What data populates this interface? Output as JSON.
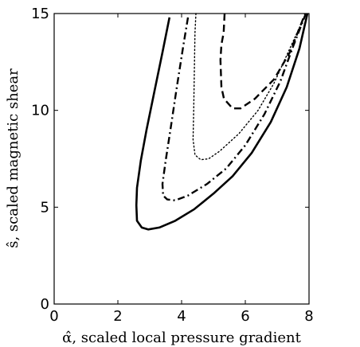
{
  "chart_data": {
    "type": "line",
    "title": "",
    "xlabel": "α̂, scaled local pressure gradient",
    "ylabel": "ŝ, scaled magnetic shear",
    "xlim": [
      0,
      8
    ],
    "ylim": [
      0,
      15
    ],
    "xticks": [
      0,
      2,
      4,
      6,
      8
    ],
    "yticks": [
      0,
      5,
      10,
      15
    ],
    "grid": false,
    "legend": "none",
    "series": [
      {
        "style": "solid",
        "color": "#000000",
        "points": [
          [
            3.62,
            14.8
          ],
          [
            3.4,
            13.0
          ],
          [
            3.15,
            11.0
          ],
          [
            2.9,
            9.0
          ],
          [
            2.72,
            7.4
          ],
          [
            2.6,
            6.0
          ],
          [
            2.58,
            5.1
          ],
          [
            2.6,
            4.3
          ],
          [
            2.75,
            3.95
          ],
          [
            2.95,
            3.85
          ],
          [
            3.3,
            3.95
          ],
          [
            3.8,
            4.3
          ],
          [
            4.4,
            4.9
          ],
          [
            5.0,
            5.7
          ],
          [
            5.6,
            6.6
          ],
          [
            6.2,
            7.8
          ],
          [
            6.8,
            9.4
          ],
          [
            7.3,
            11.2
          ],
          [
            7.7,
            13.2
          ],
          [
            7.95,
            15.0
          ]
        ]
      },
      {
        "style": "dashdot",
        "color": "#000000",
        "points": [
          [
            4.2,
            14.8
          ],
          [
            4.05,
            13.3
          ],
          [
            3.85,
            11.2
          ],
          [
            3.65,
            9.0
          ],
          [
            3.5,
            7.4
          ],
          [
            3.4,
            6.2
          ],
          [
            3.42,
            5.6
          ],
          [
            3.55,
            5.4
          ],
          [
            3.8,
            5.35
          ],
          [
            4.2,
            5.6
          ],
          [
            4.8,
            6.2
          ],
          [
            5.4,
            7.0
          ],
          [
            6.0,
            8.2
          ],
          [
            6.6,
            9.8
          ],
          [
            7.1,
            11.5
          ],
          [
            7.5,
            13.3
          ],
          [
            7.9,
            15.0
          ]
        ]
      },
      {
        "style": "dotted",
        "color": "#000000",
        "points": [
          [
            4.45,
            15.0
          ],
          [
            4.42,
            14.0
          ],
          [
            4.4,
            12.0
          ],
          [
            4.38,
            10.0
          ],
          [
            4.36,
            8.5
          ],
          [
            4.42,
            7.7
          ],
          [
            4.6,
            7.45
          ],
          [
            4.85,
            7.5
          ],
          [
            5.2,
            7.9
          ],
          [
            5.8,
            8.8
          ],
          [
            6.4,
            10.0
          ],
          [
            6.9,
            11.4
          ],
          [
            7.4,
            13.2
          ],
          [
            7.9,
            15.0
          ]
        ]
      },
      {
        "style": "dashed",
        "color": "#000000",
        "points": [
          [
            5.35,
            15.0
          ],
          [
            5.32,
            14.0
          ],
          [
            5.25,
            13.4
          ],
          [
            5.22,
            12.6
          ],
          [
            5.25,
            11.2
          ],
          [
            5.33,
            10.6
          ],
          [
            5.6,
            10.1
          ],
          [
            5.85,
            10.1
          ],
          [
            6.3,
            10.6
          ],
          [
            6.9,
            11.6
          ],
          [
            7.4,
            13.0
          ],
          [
            7.88,
            15.0
          ]
        ]
      }
    ]
  }
}
